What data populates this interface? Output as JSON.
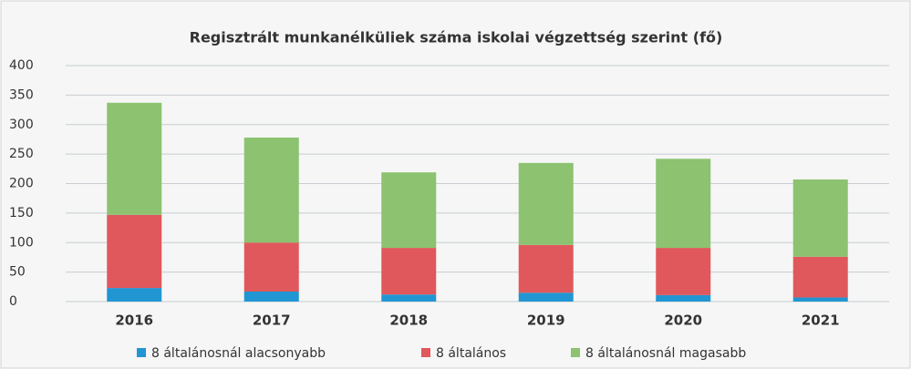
{
  "chart_data": {
    "type": "stacked_bar",
    "title": "Regisztrált munkanélküliek száma iskolai végzettség szerint (fő)",
    "categories": [
      "2016",
      "2017",
      "2018",
      "2019",
      "2020",
      "2021"
    ],
    "series": [
      {
        "name": "8 általánosnál alacsonyabb",
        "color": "#2196d3",
        "values": [
          23,
          17,
          12,
          15,
          11,
          7
        ]
      },
      {
        "name": "8 általános",
        "color": "#e0585c",
        "values": [
          124,
          83,
          79,
          81,
          80,
          69
        ]
      },
      {
        "name": "8 általánosnál magasabb",
        "color": "#8cc270",
        "values": [
          190,
          178,
          128,
          139,
          151,
          131
        ]
      }
    ],
    "ylim": [
      0,
      400
    ],
    "yticks": [
      0,
      50,
      100,
      150,
      200,
      250,
      300,
      350,
      400
    ],
    "grid": true
  }
}
